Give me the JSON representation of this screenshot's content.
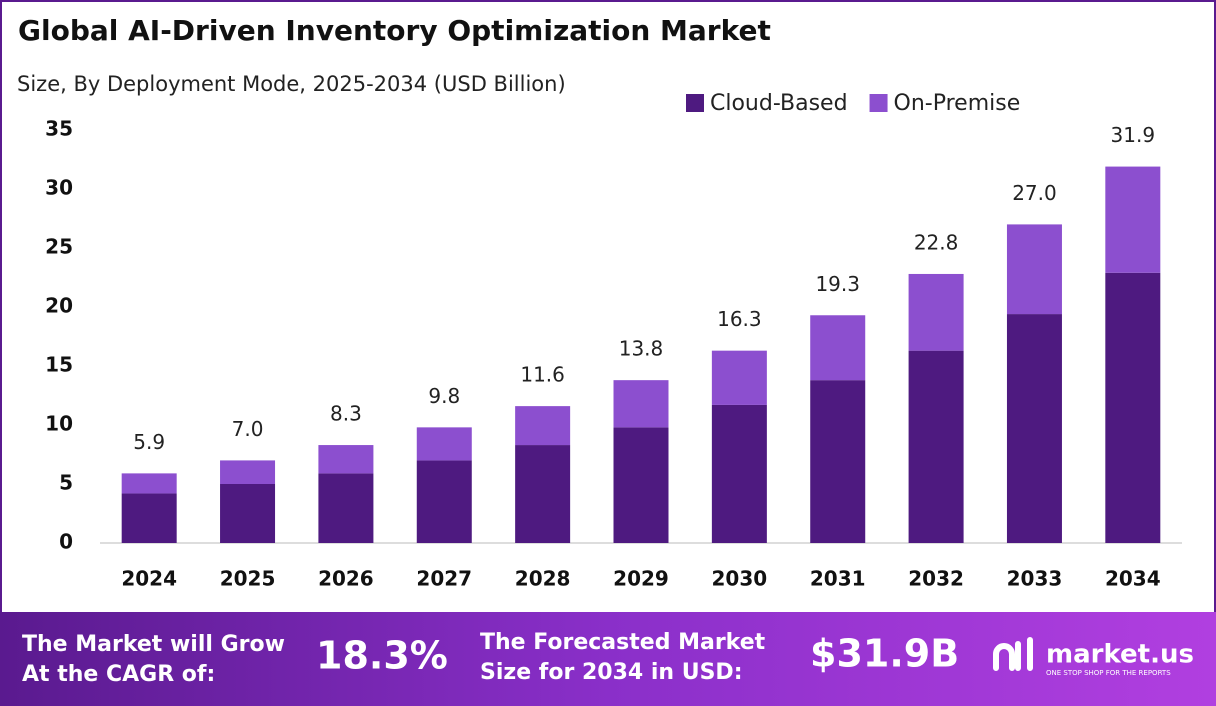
{
  "chart_data": {
    "type": "stacked_bar",
    "title": "Global AI-Driven Inventory Optimization Market",
    "subtitle": "Size, By Deployment Mode, 2025-2034 (USD Billion)",
    "categories": [
      "2024",
      "2025",
      "2026",
      "2027",
      "2028",
      "2029",
      "2030",
      "2031",
      "2032",
      "2033",
      "2034"
    ],
    "series": [
      {
        "name": "Cloud-Based",
        "color": "#4e1a80",
        "values": [
          4.2,
          5.0,
          5.9,
          7.0,
          8.3,
          9.8,
          11.7,
          13.8,
          16.3,
          19.4,
          22.9
        ]
      },
      {
        "name": "On-Premise",
        "color": "#8c4fcf",
        "values": [
          1.7,
          2.0,
          2.4,
          2.8,
          3.3,
          4.0,
          4.6,
          5.5,
          6.5,
          7.6,
          9.0
        ]
      }
    ],
    "total_labels": [
      "5.9",
      "7.0",
      "8.3",
      "9.8",
      "11.6",
      "13.8",
      "16.3",
      "19.3",
      "22.8",
      "27.0",
      "31.9"
    ],
    "ylim": [
      0,
      35
    ],
    "yticks": [
      0,
      5,
      10,
      15,
      20,
      25,
      30,
      35
    ],
    "grid": false,
    "legend": "top-right"
  },
  "footer": {
    "cagr_text": [
      "The Market will Grow",
      "At the CAGR of:"
    ],
    "cagr_value": "18.3%",
    "forecast_text": [
      "The Forecasted Market",
      "Size for 2034 in USD:"
    ],
    "forecast_value": "$31.9B",
    "brand": "market.us",
    "tagline": "ONE STOP SHOP FOR THE REPORTS"
  }
}
